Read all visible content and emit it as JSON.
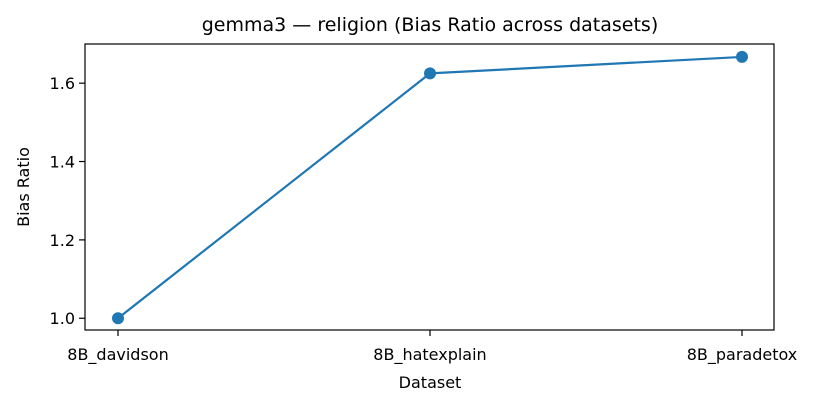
{
  "chart_data": {
    "type": "line",
    "title": "gemma3 — religion (Bias Ratio across datasets)",
    "xlabel": "Dataset",
    "ylabel": "Bias Ratio",
    "categories": [
      "8B_davidson",
      "8B_hatexplain",
      "8B_paradetox"
    ],
    "series": [
      {
        "values": [
          1.0,
          1.625,
          1.667
        ],
        "color": "#1f77b4",
        "marker": "circle"
      }
    ],
    "ylim": [
      0.97,
      1.7
    ],
    "yticks": [
      1.0,
      1.2,
      1.4,
      1.6
    ],
    "ytick_labels": [
      "1.0",
      "1.2",
      "1.4",
      "1.6"
    ],
    "grid": false,
    "legend": "none"
  }
}
